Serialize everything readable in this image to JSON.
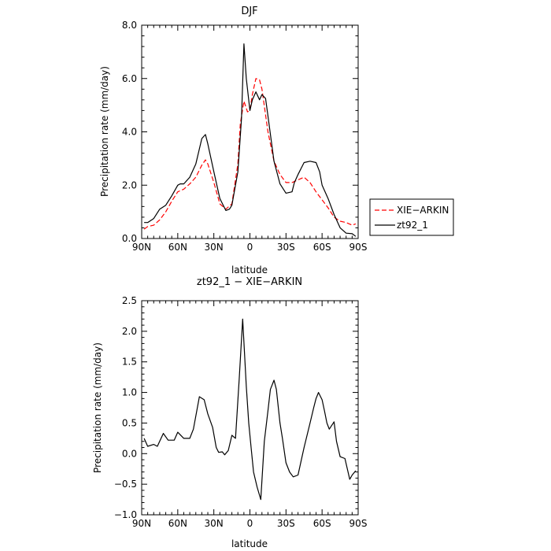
{
  "chart_data": [
    {
      "type": "line",
      "title": "DJF",
      "xlabel": "latitude",
      "ylabel": "Precipitation rate (mm/day)",
      "xlim": [
        90,
        -90
      ],
      "ylim": [
        0,
        8
      ],
      "xticks": [
        90,
        60,
        30,
        0,
        -30,
        -60,
        -90
      ],
      "xtick_labels": [
        "90N",
        "60N",
        "30N",
        "0",
        "30S",
        "60S",
        "90S"
      ],
      "yticks": [
        0,
        2,
        4,
        6,
        8
      ],
      "ytick_labels": [
        "0.0",
        "2.0",
        "4.0",
        "6.0",
        "8.0"
      ],
      "grid": false,
      "legend": "right",
      "series": [
        {
          "name": "XIE−ARKIN",
          "color": "#ff0000",
          "dash": "dashed",
          "x": [
            88,
            85,
            80,
            75,
            70,
            65,
            60,
            55,
            50,
            45,
            40,
            37,
            35,
            30,
            25,
            20,
            15,
            10,
            8,
            5,
            2,
            0,
            -2,
            -5,
            -8,
            -10,
            -15,
            -20,
            -25,
            -30,
            -35,
            -40,
            -45,
            -50,
            -55,
            -60,
            -65,
            -70,
            -75,
            -80,
            -85,
            -88
          ],
          "y": [
            0.35,
            0.45,
            0.5,
            0.7,
            1.0,
            1.4,
            1.75,
            1.85,
            2.05,
            2.3,
            2.75,
            2.95,
            2.8,
            2.1,
            1.3,
            1.1,
            1.3,
            2.8,
            4.3,
            5.15,
            4.75,
            4.8,
            5.4,
            6.0,
            5.95,
            5.6,
            4.0,
            2.9,
            2.4,
            2.1,
            2.1,
            2.2,
            2.3,
            2.1,
            1.75,
            1.45,
            1.15,
            0.8,
            0.65,
            0.6,
            0.5,
            0.55
          ]
        },
        {
          "name": "zt92_1",
          "color": "#000000",
          "dash": "solid",
          "x": [
            88,
            85,
            80,
            75,
            70,
            65,
            60,
            58,
            55,
            50,
            45,
            40,
            37,
            35,
            30,
            25,
            20,
            17,
            15,
            10,
            7,
            5,
            3,
            0,
            -2,
            -5,
            -8,
            -10,
            -13,
            -15,
            -20,
            -25,
            -30,
            -35,
            -37,
            -40,
            -45,
            -50,
            -55,
            -58,
            -60,
            -65,
            -70,
            -75,
            -80,
            -85,
            -88
          ],
          "y": [
            0.6,
            0.6,
            0.75,
            1.1,
            1.25,
            1.6,
            2.0,
            2.05,
            2.05,
            2.3,
            2.8,
            3.75,
            3.9,
            3.55,
            2.5,
            1.5,
            1.05,
            1.1,
            1.25,
            2.5,
            4.5,
            7.3,
            6.0,
            4.8,
            5.2,
            5.5,
            5.2,
            5.4,
            5.25,
            4.6,
            2.9,
            2.05,
            1.7,
            1.75,
            2.1,
            2.4,
            2.85,
            2.9,
            2.85,
            2.5,
            2.0,
            1.5,
            0.9,
            0.4,
            0.2,
            0.18,
            0.08
          ]
        }
      ]
    },
    {
      "type": "line",
      "title": "zt92_1 − XIE−ARKIN",
      "xlabel": "latitude",
      "ylabel": "Precipitation rate (mm/day)",
      "xlim": [
        90,
        -90
      ],
      "ylim": [
        -1.0,
        2.5
      ],
      "xticks": [
        90,
        60,
        30,
        0,
        -30,
        -60,
        -90
      ],
      "xtick_labels": [
        "90N",
        "60N",
        "30N",
        "0",
        "30S",
        "60S",
        "90S"
      ],
      "yticks": [
        -1.0,
        -0.5,
        0,
        0.5,
        1.0,
        1.5,
        2.0,
        2.5
      ],
      "ytick_labels": [
        "−1.0",
        "−0.5",
        "0.0",
        "0.5",
        "1.0",
        "1.5",
        "2.0",
        "2.5"
      ],
      "grid": false,
      "series": [
        {
          "color": "#000000",
          "dash": "solid",
          "x": [
            88,
            85,
            80,
            77,
            72,
            68,
            63,
            60,
            55,
            50,
            47,
            42,
            38,
            35,
            31,
            28,
            26,
            23,
            21,
            18,
            15,
            12,
            9,
            6,
            3,
            1,
            -1,
            -3,
            -6,
            -9,
            -12,
            -15,
            -17,
            -20,
            -22,
            -25,
            -27,
            -30,
            -33,
            -36,
            -40,
            -45,
            -50,
            -53,
            -55,
            -57,
            -60,
            -62,
            -64,
            -66,
            -70,
            -72,
            -75,
            -79,
            -83,
            -85,
            -88
          ],
          "y": [
            0.25,
            0.12,
            0.15,
            0.12,
            0.33,
            0.22,
            0.22,
            0.35,
            0.25,
            0.25,
            0.4,
            0.93,
            0.88,
            0.65,
            0.43,
            0.1,
            0.02,
            0.03,
            -0.02,
            0.05,
            0.3,
            0.25,
            1.2,
            2.2,
            1.1,
            0.5,
            0.1,
            -0.3,
            -0.55,
            -0.75,
            0.2,
            0.7,
            1.05,
            1.2,
            1.05,
            0.5,
            0.25,
            -0.15,
            -0.3,
            -0.38,
            -0.35,
            0.1,
            0.5,
            0.75,
            0.9,
            1.0,
            0.88,
            0.7,
            0.5,
            0.4,
            0.52,
            0.2,
            -0.05,
            -0.08,
            -0.42,
            -0.35,
            -0.28
          ]
        }
      ]
    }
  ]
}
